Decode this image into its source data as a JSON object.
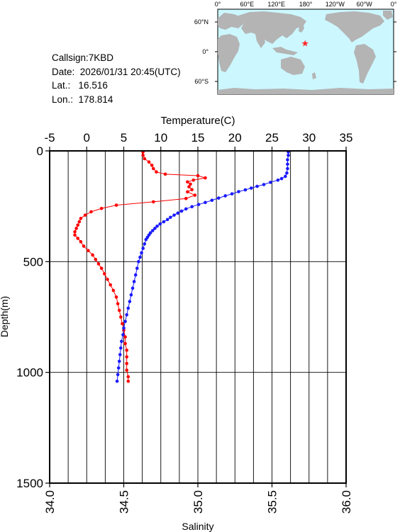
{
  "station": {
    "callsign_label": "Callsign:",
    "callsign": "7KBD",
    "date_label": "Date:",
    "date": "2026/01/31 20:45(UTC)",
    "lat_label": "Lat.:",
    "lat": "16.516",
    "lon_label": "Lon.:",
    "lon": "178.814"
  },
  "map": {
    "top_ticks": [
      "0°",
      "60°E",
      "120°E",
      "180°",
      "120°W",
      "60°W",
      "0°"
    ],
    "left_ticks": [
      "60°N",
      "0°",
      "60°S"
    ],
    "ocean_color": "#ccf7ff",
    "land_color": "#b4b4b4",
    "marker_icon": "red-star",
    "marker_color": "#ff2a2a",
    "marker_lat": 16.516,
    "marker_lon": 178.814
  },
  "chart_data": {
    "type": "scatter",
    "title": "",
    "x_top_label": "Temperature(C)",
    "x_bottom_label": "Salinity",
    "y_label": "Depth(m)",
    "y_range": [
      0,
      1500
    ],
    "y_ticks": [
      0,
      500,
      1000,
      1500
    ],
    "temp_range": [
      -5,
      35
    ],
    "temp_ticks": [
      -5,
      0,
      5,
      10,
      15,
      20,
      25,
      30,
      35
    ],
    "sal_range": [
      34.0,
      36.0
    ],
    "sal_ticks": [
      "34.0",
      "34.5",
      "35.0",
      "35.5",
      "36.0"
    ],
    "grid": true,
    "series": [
      {
        "variable": "temperature",
        "color": "#ff0000",
        "points": [
          [
            27.2,
            5
          ],
          [
            27.2,
            20
          ],
          [
            27.1,
            40
          ],
          [
            27.1,
            60
          ],
          [
            27.1,
            80
          ],
          [
            27.0,
            100
          ],
          [
            26.8,
            115
          ],
          [
            26.3,
            125
          ],
          [
            25.8,
            132
          ],
          [
            24.8,
            142
          ],
          [
            23.9,
            152
          ],
          [
            23.0,
            160
          ],
          [
            22.2,
            168
          ],
          [
            21.4,
            176
          ],
          [
            20.5,
            184
          ],
          [
            19.6,
            194
          ],
          [
            18.7,
            203
          ],
          [
            17.8,
            213
          ],
          [
            16.9,
            223
          ],
          [
            16.0,
            233
          ],
          [
            15.1,
            242
          ],
          [
            14.2,
            252
          ],
          [
            13.4,
            262
          ],
          [
            12.8,
            272
          ],
          [
            12.3,
            281
          ],
          [
            11.8,
            290
          ],
          [
            11.3,
            300
          ],
          [
            10.9,
            310
          ],
          [
            10.4,
            320
          ],
          [
            9.9,
            330
          ],
          [
            9.5,
            340
          ],
          [
            9.2,
            350
          ],
          [
            8.9,
            360
          ],
          [
            8.6,
            370
          ],
          [
            8.4,
            380
          ],
          [
            8.2,
            390
          ],
          [
            8.0,
            400
          ],
          [
            7.8,
            420
          ],
          [
            7.6,
            440
          ],
          [
            7.4,
            460
          ],
          [
            7.2,
            480
          ],
          [
            7.0,
            500
          ],
          [
            6.8,
            530
          ],
          [
            6.6,
            560
          ],
          [
            6.4,
            590
          ],
          [
            6.2,
            620
          ],
          [
            6.0,
            650
          ],
          [
            5.8,
            680
          ],
          [
            5.6,
            710
          ],
          [
            5.4,
            740
          ],
          [
            5.2,
            770
          ],
          [
            5.0,
            800
          ],
          [
            4.9,
            830
          ],
          [
            4.7,
            860
          ],
          [
            4.6,
            890
          ],
          [
            4.5,
            920
          ],
          [
            4.4,
            950
          ],
          [
            4.3,
            980
          ],
          [
            4.2,
            1010
          ],
          [
            4.1,
            1040
          ]
        ]
      },
      {
        "variable": "salinity",
        "color": "#ff0000",
        "points": [
          [
            34.63,
            5
          ],
          [
            34.63,
            20
          ],
          [
            34.64,
            35
          ],
          [
            34.67,
            50
          ],
          [
            34.69,
            65
          ],
          [
            34.7,
            80
          ],
          [
            34.72,
            95
          ],
          [
            34.78,
            105
          ],
          [
            35.0,
            112
          ],
          [
            35.05,
            122
          ],
          [
            34.97,
            132
          ],
          [
            34.93,
            140
          ],
          [
            34.95,
            150
          ],
          [
            34.94,
            162
          ],
          [
            34.96,
            175
          ],
          [
            34.93,
            185
          ],
          [
            34.98,
            200
          ],
          [
            34.92,
            215
          ],
          [
            34.7,
            230
          ],
          [
            34.45,
            245
          ],
          [
            34.35,
            260
          ],
          [
            34.28,
            275
          ],
          [
            34.24,
            290
          ],
          [
            34.21,
            305
          ],
          [
            34.2,
            320
          ],
          [
            34.19,
            335
          ],
          [
            34.18,
            350
          ],
          [
            34.17,
            365
          ],
          [
            34.17,
            380
          ],
          [
            34.19,
            395
          ],
          [
            34.21,
            410
          ],
          [
            34.23,
            430
          ],
          [
            34.26,
            450
          ],
          [
            34.29,
            470
          ],
          [
            34.31,
            490
          ],
          [
            34.33,
            510
          ],
          [
            34.35,
            530
          ],
          [
            34.37,
            555
          ],
          [
            34.39,
            580
          ],
          [
            34.41,
            605
          ],
          [
            34.43,
            630
          ],
          [
            34.45,
            660
          ],
          [
            34.46,
            690
          ],
          [
            34.47,
            720
          ],
          [
            34.48,
            750
          ],
          [
            34.49,
            780
          ],
          [
            34.5,
            810
          ],
          [
            34.51,
            840
          ],
          [
            34.51,
            870
          ],
          [
            34.52,
            900
          ],
          [
            34.52,
            930
          ],
          [
            34.52,
            960
          ],
          [
            34.52,
            990
          ],
          [
            34.53,
            1020
          ],
          [
            34.53,
            1040
          ]
        ]
      }
    ]
  }
}
